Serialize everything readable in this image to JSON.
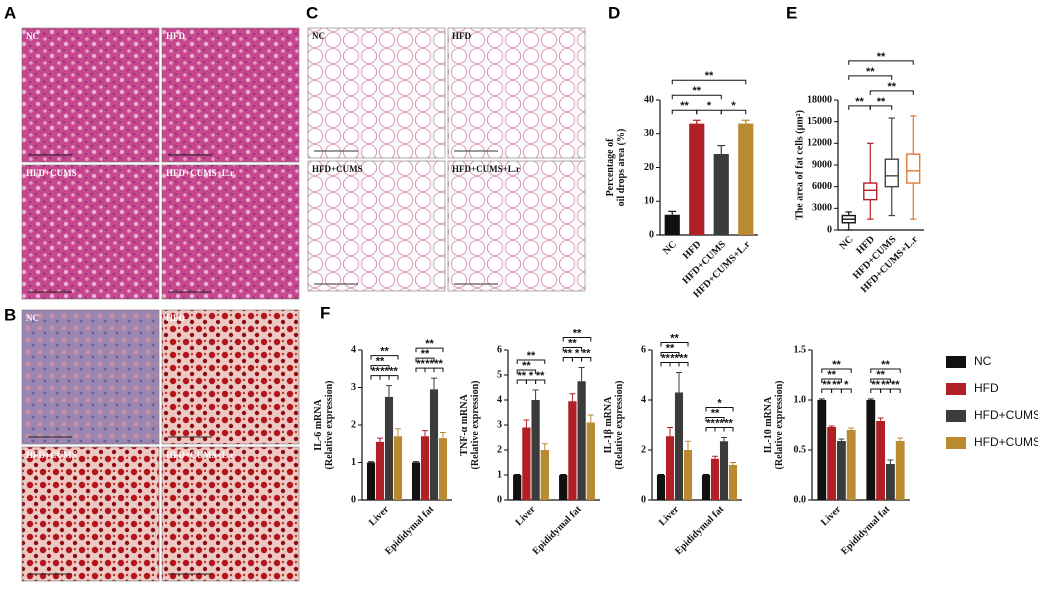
{
  "panel_labels": [
    "A",
    "B",
    "C",
    "D",
    "E",
    "F"
  ],
  "image_panels": [
    {
      "images": [
        "NC",
        "HFD",
        "HFD+CUMS",
        "HFD+CUMS+L.r"
      ]
    },
    {
      "images": [
        "NC",
        "HFD",
        "HFD+CUMS",
        "HFD+CUMS+L.r"
      ]
    },
    {
      "images": [
        "NC",
        "HFD",
        "HFD+CUMS",
        "HFD+CUMS+L.r"
      ]
    }
  ],
  "chart_data": [
    {
      "type": "bar",
      "y_label": [
        "Percentage of",
        "oil drops area (%)"
      ],
      "categories": [
        "NC",
        "HFD",
        "HFD+CUMS",
        "HFD+CUMS+L.r"
      ],
      "values": [
        6,
        33,
        24,
        33
      ],
      "errors": [
        1,
        1,
        2.5,
        1
      ],
      "colors": [
        "#111111",
        "#b21f24",
        "#3b3b3b",
        "#b98a2f"
      ],
      "ylim": [
        0,
        40
      ],
      "yticks": [
        0,
        10,
        20,
        30,
        40
      ],
      "annotations": [
        {
          "from": 1,
          "to": 2,
          "text": "*"
        },
        {
          "from": 2,
          "to": 3,
          "text": "*"
        },
        {
          "from": 0,
          "to": 1,
          "text": "**"
        },
        {
          "from": 0,
          "to": 2,
          "text": "**"
        },
        {
          "from": 0,
          "to": 3,
          "text": "**"
        }
      ]
    },
    {
      "type": "box",
      "y_label": [
        "The area of fat cells (μm²)"
      ],
      "categories": [
        "NC",
        "HFD",
        "HFD+CUMS",
        "HFD+CUMS+L.r"
      ],
      "boxes": [
        {
          "min": 0,
          "q1": 1000,
          "median": 1500,
          "q3": 2000,
          "max": 2500
        },
        {
          "min": 1500,
          "q1": 4200,
          "median": 5500,
          "q3": 6500,
          "max": 12000
        },
        {
          "min": 2000,
          "q1": 6000,
          "median": 7500,
          "q3": 9800,
          "max": 15500
        },
        {
          "min": 1500,
          "q1": 6500,
          "median": 8200,
          "q3": 10500,
          "max": 15800
        }
      ],
      "colors": [
        "#111111",
        "#b21f24",
        "#444444",
        "#e07b39"
      ],
      "ylim": [
        0,
        18000
      ],
      "yticks": [
        0,
        3000,
        6000,
        9000,
        12000,
        15000,
        18000
      ],
      "annotations": [
        {
          "from": 0,
          "to": 1,
          "text": "**"
        },
        {
          "from": 1,
          "to": 2,
          "text": "**"
        },
        {
          "from": 1,
          "to": 3,
          "text": "**"
        },
        {
          "from": 0,
          "to": 2,
          "text": "**"
        },
        {
          "from": 0,
          "to": 3,
          "text": "**"
        }
      ]
    },
    {
      "type": "grouped",
      "y_label": [
        "IL-6 mRNA",
        "(Relative expression)"
      ],
      "categories": [
        "Liver",
        "Epididymal fat"
      ],
      "series": [
        {
          "name": "NC",
          "color": "#111111",
          "values": [
            1,
            1
          ],
          "errors": [
            0.02,
            0.02
          ]
        },
        {
          "name": "HFD",
          "color": "#b21f24",
          "values": [
            1.55,
            1.7
          ],
          "errors": [
            0.1,
            0.15
          ]
        },
        {
          "name": "HFD+CUMS",
          "color": "#3b3b3b",
          "values": [
            2.75,
            2.95
          ],
          "errors": [
            0.3,
            0.3
          ]
        },
        {
          "name": "HFD+CUMS+L.r",
          "color": "#b98a2f",
          "values": [
            1.7,
            1.65
          ],
          "errors": [
            0.2,
            0.15
          ]
        }
      ],
      "ylim": [
        0,
        4
      ],
      "yticks": [
        0,
        1,
        2,
        3,
        4
      ],
      "annotations": [
        {
          "group": 0,
          "from": 0,
          "to": 1,
          "text": "**"
        },
        {
          "group": 0,
          "from": 1,
          "to": 2,
          "text": "**"
        },
        {
          "group": 0,
          "from": 2,
          "to": 3,
          "text": "**"
        },
        {
          "group": 0,
          "from": 0,
          "to": 2,
          "text": "**"
        },
        {
          "group": 0,
          "from": 0,
          "to": 3,
          "text": "**"
        },
        {
          "group": 1,
          "from": 0,
          "to": 1,
          "text": "**"
        },
        {
          "group": 1,
          "from": 1,
          "to": 2,
          "text": "**"
        },
        {
          "group": 1,
          "from": 2,
          "to": 3,
          "text": "**"
        },
        {
          "group": 1,
          "from": 0,
          "to": 2,
          "text": "**"
        },
        {
          "group": 1,
          "from": 0,
          "to": 3,
          "text": "**"
        }
      ]
    },
    {
      "type": "grouped",
      "y_label": [
        "TNF-α mRNA",
        "(Relative expression)"
      ],
      "categories": [
        "Liver",
        "Epididymal fat"
      ],
      "series": [
        {
          "name": "NC",
          "color": "#111111",
          "values": [
            1,
            1
          ],
          "errors": [
            0.02,
            0.02
          ]
        },
        {
          "name": "HFD",
          "color": "#b21f24",
          "values": [
            2.9,
            3.95
          ],
          "errors": [
            0.3,
            0.3
          ]
        },
        {
          "name": "HFD+CUMS",
          "color": "#3b3b3b",
          "values": [
            4,
            4.75
          ],
          "errors": [
            0.4,
            0.55
          ]
        },
        {
          "name": "HFD+CUMS+L.r",
          "color": "#b98a2f",
          "values": [
            2,
            3.1
          ],
          "errors": [
            0.25,
            0.3
          ]
        }
      ],
      "ylim": [
        0,
        6
      ],
      "yticks": [
        0,
        1,
        2,
        3,
        4,
        5,
        6
      ],
      "annotations": [
        {
          "group": 0,
          "from": 0,
          "to": 1,
          "text": "**"
        },
        {
          "group": 0,
          "from": 1,
          "to": 2,
          "text": "*"
        },
        {
          "group": 0,
          "from": 2,
          "to": 3,
          "text": "**"
        },
        {
          "group": 0,
          "from": 0,
          "to": 2,
          "text": "**"
        },
        {
          "group": 0,
          "from": 0,
          "to": 3,
          "text": "**"
        },
        {
          "group": 1,
          "from": 0,
          "to": 1,
          "text": "**"
        },
        {
          "group": 1,
          "from": 1,
          "to": 2,
          "text": "*"
        },
        {
          "group": 1,
          "from": 2,
          "to": 3,
          "text": "**"
        },
        {
          "group": 1,
          "from": 0,
          "to": 2,
          "text": "**"
        },
        {
          "group": 1,
          "from": 0,
          "to": 3,
          "text": "**"
        }
      ]
    },
    {
      "type": "grouped",
      "y_label": [
        "IL-1β mRNA",
        "(Relative expression)"
      ],
      "categories": [
        "Liver",
        "Epididymal fat"
      ],
      "series": [
        {
          "name": "NC",
          "color": "#111111",
          "values": [
            1,
            1
          ],
          "errors": [
            0.02,
            0.02
          ]
        },
        {
          "name": "HFD",
          "color": "#b21f24",
          "values": [
            2.55,
            1.65
          ],
          "errors": [
            0.35,
            0.1
          ]
        },
        {
          "name": "HFD+CUMS",
          "color": "#3b3b3b",
          "values": [
            4.3,
            2.35
          ],
          "errors": [
            0.8,
            0.15
          ]
        },
        {
          "name": "HFD+CUMS+L.r",
          "color": "#b98a2f",
          "values": [
            2,
            1.4
          ],
          "errors": [
            0.35,
            0.1
          ]
        }
      ],
      "ylim": [
        0,
        6
      ],
      "yticks": [
        0,
        2,
        4,
        6
      ],
      "annotations": [
        {
          "group": 0,
          "from": 0,
          "to": 1,
          "text": "**"
        },
        {
          "group": 0,
          "from": 1,
          "to": 2,
          "text": "**"
        },
        {
          "group": 0,
          "from": 2,
          "to": 3,
          "text": "**"
        },
        {
          "group": 0,
          "from": 0,
          "to": 2,
          "text": "**"
        },
        {
          "group": 0,
          "from": 0,
          "to": 3,
          "text": "**"
        },
        {
          "group": 1,
          "from": 0,
          "to": 1,
          "text": "**"
        },
        {
          "group": 1,
          "from": 1,
          "to": 2,
          "text": "**"
        },
        {
          "group": 1,
          "from": 2,
          "to": 3,
          "text": "**"
        },
        {
          "group": 1,
          "from": 0,
          "to": 2,
          "text": "**"
        },
        {
          "group": 1,
          "from": 0,
          "to": 3,
          "text": "*"
        }
      ]
    },
    {
      "type": "grouped",
      "y_label": [
        "IL-10 mRNA",
        "(Relative expression)"
      ],
      "categories": [
        "Liver",
        "Epididymal fat"
      ],
      "series": [
        {
          "name": "NC",
          "color": "#111111",
          "values": [
            1,
            1
          ],
          "errors": [
            0.01,
            0.01
          ]
        },
        {
          "name": "HFD",
          "color": "#b21f24",
          "values": [
            0.73,
            0.79
          ],
          "errors": [
            0.01,
            0.03
          ]
        },
        {
          "name": "HFD+CUMS",
          "color": "#3b3b3b",
          "values": [
            0.59,
            0.36
          ],
          "errors": [
            0.02,
            0.04
          ]
        },
        {
          "name": "HFD+CUMS+L.r",
          "color": "#b98a2f",
          "values": [
            0.7,
            0.59
          ],
          "errors": [
            0.02,
            0.03
          ]
        }
      ],
      "ylim": [
        0,
        1.5
      ],
      "yticks": [
        {
          "value": 0,
          "label": "0.0"
        },
        0.5,
        {
          "value": 1,
          "label": "1.0"
        },
        1.5
      ],
      "annotations": [
        {
          "group": 0,
          "from": 0,
          "to": 1,
          "text": "**"
        },
        {
          "group": 0,
          "from": 1,
          "to": 2,
          "text": "**"
        },
        {
          "group": 0,
          "from": 2,
          "to": 3,
          "text": "*"
        },
        {
          "group": 0,
          "from": 0,
          "to": 2,
          "text": "**"
        },
        {
          "group": 0,
          "from": 0,
          "to": 3,
          "text": "**"
        },
        {
          "group": 1,
          "from": 0,
          "to": 1,
          "text": "**"
        },
        {
          "group": 1,
          "from": 1,
          "to": 2,
          "text": "**"
        },
        {
          "group": 1,
          "from": 2,
          "to": 3,
          "text": "**"
        },
        {
          "group": 1,
          "from": 0,
          "to": 2,
          "text": "**"
        },
        {
          "group": 1,
          "from": 0,
          "to": 3,
          "text": "**"
        }
      ]
    }
  ]
}
